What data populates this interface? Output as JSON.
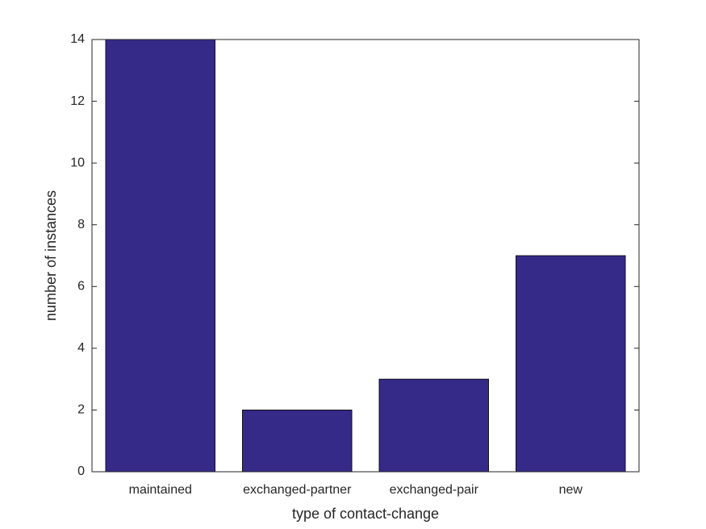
{
  "chart_data": {
    "type": "bar",
    "x_label": "type of contact-change",
    "y_label": "number of instances",
    "categories": [
      "maintained",
      "exchanged-partner",
      "exchanged-pair",
      "new"
    ],
    "values": [
      14,
      2,
      3,
      7
    ],
    "color": "#352a87",
    "ylim": [
      0,
      14
    ],
    "yticks": [
      0,
      2,
      4,
      6,
      8,
      10,
      12,
      14
    ],
    "grid": false
  }
}
